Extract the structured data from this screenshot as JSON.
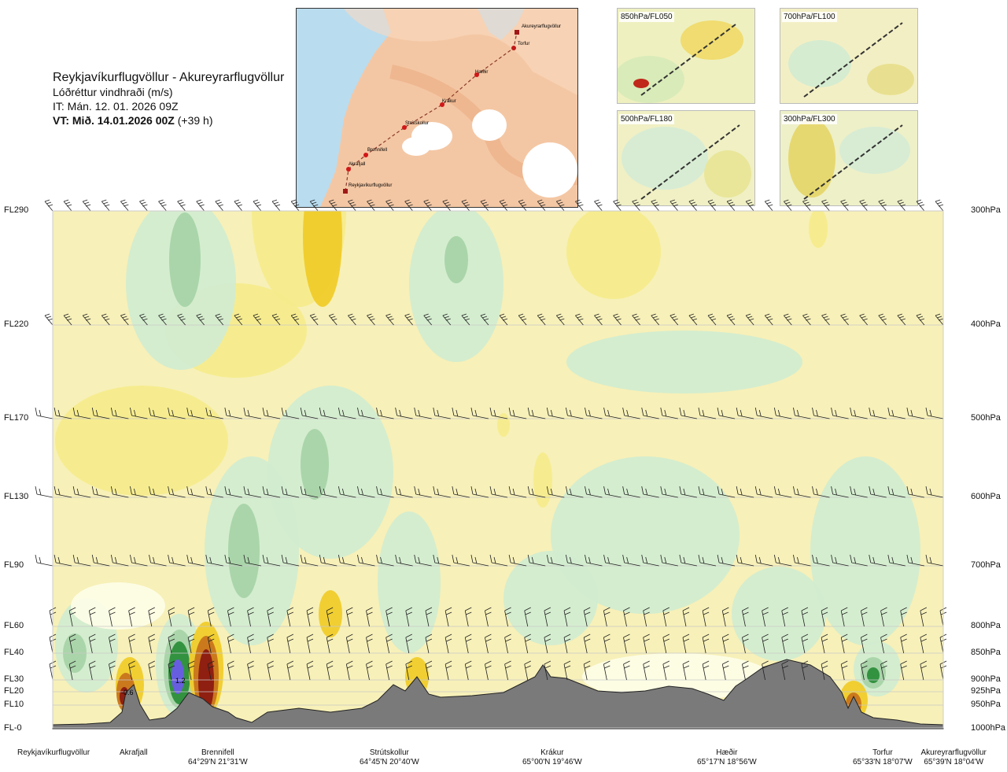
{
  "header": {
    "route": "Reykjavíkurflugvöllur - Akureyrarflugvöllur",
    "variable": "Lóðréttur vindhraði (m/s)",
    "issue": "IT: Mán. 12. 01. 2026 09Z",
    "valid_bold": "VT: Mið. 14.01.2026 00Z",
    "valid_extra": "(+39 h)"
  },
  "map": {
    "waypoints": [
      {
        "name": "Akureyrarflugvöllur",
        "type": "airport"
      },
      {
        "name": "Torfur",
        "type": "point"
      },
      {
        "name": "Hæðir",
        "type": "point"
      },
      {
        "name": "Krákur",
        "type": "point"
      },
      {
        "name": "Strútskollur",
        "type": "point"
      },
      {
        "name": "Brennifell",
        "type": "point"
      },
      {
        "name": "Akrafjall",
        "type": "point"
      },
      {
        "name": "Reykjavíkurflugvöllur",
        "type": "airport"
      }
    ]
  },
  "insets": [
    {
      "label": "850hPa/FL050"
    },
    {
      "label": "700hPa/FL100"
    },
    {
      "label": "500hPa/FL180"
    },
    {
      "label": "300hPa/FL300"
    }
  ],
  "levels": [
    {
      "fl": "FL290",
      "hpa": "300hPa"
    },
    {
      "fl": "FL220",
      "hpa": "400hPa"
    },
    {
      "fl": "FL170",
      "hpa": "500hPa"
    },
    {
      "fl": "FL130",
      "hpa": "600hPa"
    },
    {
      "fl": "FL90",
      "hpa": "700hPa"
    },
    {
      "fl": "FL60",
      "hpa": "800hPa"
    },
    {
      "fl": "FL40",
      "hpa": "850hPa"
    },
    {
      "fl": "FL30",
      "hpa": "900hPa"
    },
    {
      "fl": "FL20",
      "hpa": "925hPa"
    },
    {
      "fl": "FL10",
      "hpa": "950hPa"
    },
    {
      "fl": "FL-0",
      "hpa": "1000hPa"
    }
  ],
  "stations": [
    {
      "name": "Reykjavíkurflugvöllur",
      "coord": ""
    },
    {
      "name": "Akrafjall",
      "coord": ""
    },
    {
      "name": "Brennifell",
      "coord": "64°29'N 21°31'W"
    },
    {
      "name": "Strútskollur",
      "coord": "64°45'N 20°40'W"
    },
    {
      "name": "Krákur",
      "coord": "65°00'N 19°46'W"
    },
    {
      "name": "Hæðir",
      "coord": "65°17'N 18°56'W"
    },
    {
      "name": "Torfur",
      "coord": "65°33'N 18°07'W"
    },
    {
      "name": "Akureyrarflugvöllur",
      "coord": "65°39'N 18°04'W"
    }
  ],
  "chart_data": {
    "type": "heatmap",
    "title": "Lóðréttur vindhraði (m/s)",
    "x_stations": [
      "Reykjavíkurflugvöllur",
      "Akrafjall",
      "Brennifell",
      "Strútskollur",
      "Krákur",
      "Hæðir",
      "Torfur",
      "Akureyrarflugvöllur"
    ],
    "y_levels_hpa": [
      1000,
      950,
      925,
      900,
      850,
      800,
      700,
      600,
      500,
      400,
      300
    ],
    "y_levels_fl": [
      "FL-0",
      "FL10",
      "FL20",
      "FL30",
      "FL40",
      "FL60",
      "FL90",
      "FL130",
      "FL170",
      "FL220",
      "FL290"
    ],
    "value_labels": [
      "-0.6",
      "1.2"
    ],
    "colors": {
      "strong_down": "#8b1a10",
      "down": "#c8741c",
      "weak_down": "#f0cc2a",
      "slight_down": "#f5eb8c",
      "near_zero": "#f7f0b8",
      "slight_up": "#fdfde6",
      "weak_up": "#d2ecd0",
      "up": "#a8d4a8",
      "strong_up": "#2b8e3a",
      "very_strong_up": "#6a5ce8",
      "terrain": "#7a7a7a"
    }
  }
}
